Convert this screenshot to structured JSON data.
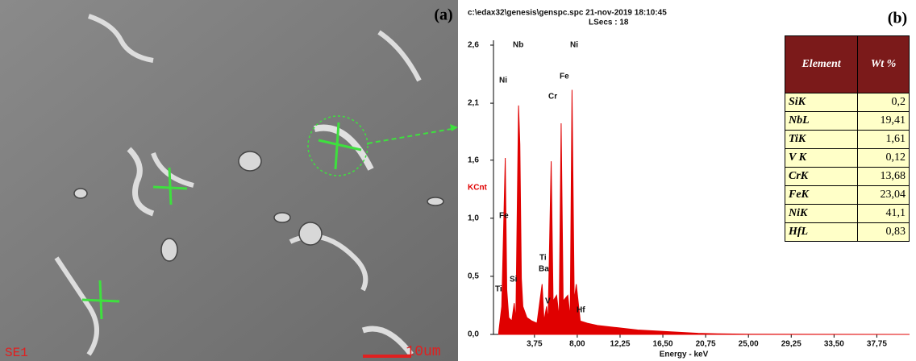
{
  "image": {
    "label": "(a)",
    "detector": "SE1",
    "scale": "10um"
  },
  "chart_data": {
    "type": "area",
    "panel": "(b)",
    "header": "c:\\edax32\\genesis\\genspc.spc  21-nov-2019 18:10:45",
    "subheader": "LSecs :  18",
    "ylabel": "KCnt",
    "xlabel": "Energy - keV",
    "color": "#e00000",
    "x": [
      0.2,
      0.5,
      0.7,
      0.85,
      1.0,
      1.2,
      1.5,
      1.74,
      1.9,
      2.17,
      2.3,
      2.45,
      2.6,
      3.0,
      3.5,
      4.0,
      4.51,
      4.7,
      4.95,
      5.1,
      5.41,
      5.6,
      5.95,
      6.2,
      6.4,
      6.6,
      7.06,
      7.3,
      7.48,
      7.7,
      7.9,
      8.3,
      9.0,
      10,
      12,
      14,
      16,
      18,
      20,
      22,
      25,
      41
    ],
    "values": [
      0.02,
      0.25,
      1.0,
      1.58,
      0.4,
      0.15,
      0.12,
      0.28,
      0.12,
      2.05,
      1.7,
      0.5,
      0.25,
      0.15,
      0.12,
      0.1,
      0.45,
      0.12,
      0.25,
      0.12,
      1.55,
      0.3,
      0.35,
      0.15,
      1.89,
      0.3,
      0.35,
      0.15,
      2.19,
      0.3,
      0.45,
      0.12,
      0.1,
      0.08,
      0.06,
      0.04,
      0.03,
      0.02,
      0.01,
      0.005,
      0.002,
      0
    ],
    "xlim": [
      0,
      41
    ],
    "ylim": [
      0,
      2.59
    ],
    "xticks": [
      {
        "value": 3.75,
        "label": "3,75"
      },
      {
        "value": 8,
        "label": "8,00"
      },
      {
        "value": 12.25,
        "label": "12,25"
      },
      {
        "value": 16.5,
        "label": "16,50"
      },
      {
        "value": 20.75,
        "label": "20,75"
      },
      {
        "value": 25,
        "label": "25,00"
      },
      {
        "value": 29.25,
        "label": "29,25"
      },
      {
        "value": 33.5,
        "label": "33,50"
      },
      {
        "value": 37.75,
        "label": "37,75"
      }
    ],
    "yticks": [
      {
        "value": 0,
        "label": "0,0"
      },
      {
        "value": 0.52,
        "label": "0,5"
      },
      {
        "value": 1.04,
        "label": "1,0"
      },
      {
        "value": 1.56,
        "label": "1,6"
      },
      {
        "value": 2.07,
        "label": "2,1"
      },
      {
        "value": 2.59,
        "label": "2,6"
      }
    ],
    "annotations": [
      "Nb",
      "Ni",
      "Ni",
      "Fe",
      "Cr",
      "Fe",
      "Ti",
      "Ba",
      "Si",
      "Ti",
      "V",
      "Hf"
    ]
  },
  "table": {
    "header": [
      "Element",
      "Wt %"
    ],
    "rows": [
      [
        "SiK",
        "0,2"
      ],
      [
        "NbL",
        "19,41"
      ],
      [
        "TiK",
        "1,61"
      ],
      [
        "V K",
        "0,12"
      ],
      [
        "CrK",
        "13,68"
      ],
      [
        "FeK",
        "23,04"
      ],
      [
        "NiK",
        "41,1"
      ],
      [
        "HfL",
        "0,83"
      ]
    ]
  }
}
